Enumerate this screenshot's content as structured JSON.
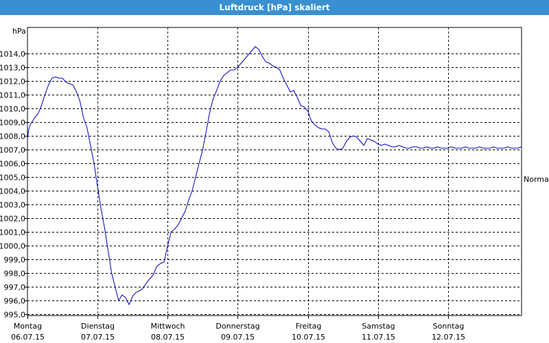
{
  "window": {
    "title": "Luftdruck [hPa] skaliert"
  },
  "chart_data": {
    "type": "line",
    "title": "Luftdruck [hPa] skaliert",
    "ylabel": "hPa",
    "right_label": "Normal",
    "ylim": [
      994.9,
      1015.9
    ],
    "y_ticks": [
      "995,0",
      "996,0",
      "997,0",
      "998,0",
      "999,0",
      "1000,0",
      "1001,0",
      "1002,0",
      "1003,0",
      "1004,0",
      "1005,0",
      "1006,0",
      "1007,0",
      "1008,0",
      "1009,0",
      "1010,0",
      "1011,0",
      "1012,0",
      "1013,0",
      "1014,0"
    ],
    "y_tick_values": [
      995,
      996,
      997,
      998,
      999,
      1000,
      1001,
      1002,
      1003,
      1004,
      1005,
      1006,
      1007,
      1008,
      1009,
      1010,
      1011,
      1012,
      1013,
      1014
    ],
    "xlim": [
      0,
      7.05
    ],
    "x_ticks": [
      {
        "day": "Montag",
        "date": "06.07.15",
        "x": 0
      },
      {
        "day": "Dienstag",
        "date": "07.07.15",
        "x": 1
      },
      {
        "day": "Mittwoch",
        "date": "08.07.15",
        "x": 2
      },
      {
        "day": "Donnerstag",
        "date": "09.07.15",
        "x": 3
      },
      {
        "day": "Freitag",
        "date": "10.07.15",
        "x": 4
      },
      {
        "day": "Samstag",
        "date": "11.07.15",
        "x": 5
      },
      {
        "day": "Sonntag",
        "date": "12.07.15",
        "x": 6
      }
    ],
    "grid": true,
    "series": [
      {
        "color": "#0000c0",
        "x": [
          0.0,
          0.02,
          0.05,
          0.1,
          0.15,
          0.2,
          0.25,
          0.3,
          0.35,
          0.4,
          0.45,
          0.5,
          0.55,
          0.6,
          0.65,
          0.7,
          0.75,
          0.8,
          0.85,
          0.9,
          0.95,
          1.0,
          1.05,
          1.1,
          1.15,
          1.2,
          1.25,
          1.3,
          1.35,
          1.4,
          1.45,
          1.5,
          1.55,
          1.6,
          1.65,
          1.7,
          1.75,
          1.8,
          1.82,
          1.85,
          1.9,
          1.95,
          2.0,
          2.05,
          2.1,
          2.15,
          2.2,
          2.25,
          2.3,
          2.35,
          2.4,
          2.45,
          2.5,
          2.55,
          2.6,
          2.65,
          2.7,
          2.75,
          2.8,
          2.85,
          2.9,
          2.95,
          3.0,
          3.05,
          3.1,
          3.15,
          3.2,
          3.25,
          3.3,
          3.35,
          3.4,
          3.45,
          3.5,
          3.55,
          3.6,
          3.65,
          3.7,
          3.75,
          3.8,
          3.85,
          3.9,
          3.95,
          4.0,
          4.05,
          4.1,
          4.15,
          4.2,
          4.25,
          4.3,
          4.35,
          4.4,
          4.45,
          4.5,
          4.55,
          4.6,
          4.65,
          4.7,
          4.75,
          4.8,
          4.85,
          4.9,
          4.95,
          5.0,
          5.05,
          5.1,
          5.15,
          5.2,
          5.25,
          5.3,
          5.35,
          5.4,
          5.45,
          5.5,
          5.55,
          5.6,
          5.65,
          5.7,
          5.75,
          5.8,
          5.85,
          5.9,
          5.95,
          6.0,
          6.05,
          6.1,
          6.15,
          6.2,
          6.25,
          6.3,
          6.35,
          6.4,
          6.45,
          6.5,
          6.55,
          6.6,
          6.65,
          6.7,
          6.75,
          6.8,
          6.85,
          6.9,
          6.95,
          7.0,
          7.05
        ],
        "values": [
          1007.8,
          1008.5,
          1008.9,
          1009.3,
          1009.6,
          1010.2,
          1011.0,
          1011.7,
          1012.2,
          1012.3,
          1012.2,
          1012.2,
          1011.9,
          1011.8,
          1011.7,
          1011.2,
          1010.5,
          1009.3,
          1008.6,
          1007.3,
          1006.0,
          1004.3,
          1002.7,
          1001.3,
          999.7,
          998.0,
          997.0,
          996.0,
          996.4,
          996.2,
          995.7,
          996.3,
          996.6,
          996.7,
          996.9,
          997.3,
          997.6,
          997.9,
          998.2,
          998.5,
          998.7,
          998.8,
          1000.0,
          1001.0,
          1001.2,
          1001.5,
          1002.0,
          1002.5,
          1003.3,
          1004.0,
          1005.0,
          1006.0,
          1007.0,
          1008.3,
          1009.7,
          1010.7,
          1011.3,
          1012.0,
          1012.4,
          1012.6,
          1012.8,
          1012.8,
          1013.0,
          1013.3,
          1013.6,
          1013.9,
          1014.2,
          1014.5,
          1014.3,
          1013.8,
          1013.4,
          1013.3,
          1013.1,
          1013.0,
          1012.8,
          1012.2,
          1011.7,
          1011.2,
          1011.3,
          1010.8,
          1010.2,
          1010.1,
          1009.8,
          1009.1,
          1008.8,
          1008.6,
          1008.5,
          1008.5,
          1008.3,
          1007.5,
          1007.1,
          1007.0,
          1007.1,
          1007.6,
          1007.9,
          1008.0,
          1007.9,
          1007.6,
          1007.3,
          1007.8,
          1007.7,
          1007.6,
          1007.4,
          1007.3,
          1007.4,
          1007.3,
          1007.2,
          1007.2,
          1007.3,
          1007.2,
          1007.1,
          1007.1,
          1007.2,
          1007.2,
          1007.1,
          1007.1,
          1007.2,
          1007.1,
          1007.1,
          1007.2,
          1007.1,
          1007.1,
          1007.1,
          1007.2,
          1007.1,
          1007.1,
          1007.1,
          1007.2,
          1007.1,
          1007.1,
          1007.1,
          1007.2,
          1007.1,
          1007.1,
          1007.1,
          1007.2,
          1007.1,
          1007.1,
          1007.1,
          1007.2,
          1007.1,
          1007.1,
          1007.1,
          1007.2
        ]
      }
    ]
  }
}
